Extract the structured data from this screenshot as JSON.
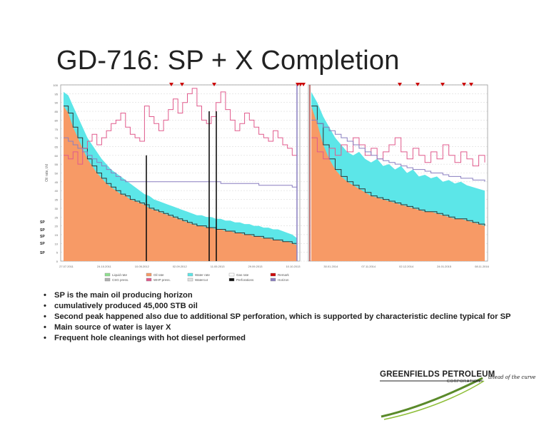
{
  "slide": {
    "title": "GD-716: SP + X Completion",
    "bullets": [
      "SP is the main oil producing horizon",
      "cumulatively produced 45,000 STB oil",
      "Second peak happened also due to additional SP perforation, which is supported by characteristic decline typical for SP",
      "Main source of water is layer X",
      "Frequent hole cleanings with hot diesel performed"
    ]
  },
  "logo": {
    "name": "GREENFIELDS PETROLEUM",
    "sub": "CORPORATION",
    "tagline": "ahead of the curve"
  },
  "colors": {
    "oil": "#f79a66",
    "water": "#5ce6e8",
    "liquid": "#8fe08f",
    "whp": "#e05a8c",
    "gor": "#8a7fc0",
    "remark": "#cc0000",
    "perforation": "#111111"
  },
  "chart_data": {
    "type": "area",
    "left_axis_labels": [
      "SP",
      "SP",
      "SP",
      "SP",
      "SP"
    ],
    "legend": [
      "Liquid rate",
      "Oil rate",
      "Water rate",
      "Gas rate",
      "Remark",
      "CSG press.",
      "WHP press.",
      "Watercut",
      "Perforations",
      "Horizon"
    ],
    "series": [
      {
        "name": "Oil rate",
        "color": "#f79a66",
        "values": [
          88,
          84,
          76,
          70,
          64,
          58,
          54,
          50,
          47,
          44,
          42,
          40,
          38,
          37,
          35,
          34,
          33,
          32,
          30,
          29,
          28,
          27,
          26,
          25,
          24,
          23,
          22,
          21,
          20,
          20,
          19,
          19,
          18,
          18,
          17,
          17,
          16,
          16,
          15,
          15,
          14,
          14,
          13,
          13,
          12,
          12,
          11,
          11,
          10,
          9,
          88,
          78,
          66,
          58,
          52,
          48,
          45,
          43,
          41,
          39,
          37,
          36,
          35,
          34,
          33,
          32,
          31,
          30,
          29,
          28,
          28,
          27,
          26,
          25,
          24,
          24,
          23,
          22,
          21,
          20
        ]
      },
      {
        "name": "Water rate",
        "color": "#5ce6e8",
        "values": [
          96,
          94,
          88,
          82,
          76,
          70,
          66,
          62,
          58,
          55,
          52,
          50,
          48,
          46,
          44,
          42,
          40,
          38,
          37,
          35,
          34,
          33,
          32,
          31,
          30,
          29,
          28,
          27,
          26,
          26,
          25,
          25,
          24,
          24,
          23,
          23,
          22,
          22,
          21,
          21,
          20,
          20,
          19,
          19,
          18,
          18,
          17,
          16,
          15,
          13,
          96,
          90,
          82,
          76,
          70,
          66,
          62,
          60,
          62,
          58,
          56,
          58,
          54,
          55,
          52,
          54,
          50,
          52,
          48,
          49,
          47,
          48,
          45,
          46,
          44,
          45,
          43,
          42,
          41,
          40
        ]
      },
      {
        "name": "WHP press.",
        "color": "#e05a8c",
        "values": [
          60,
          58,
          62,
          55,
          64,
          68,
          72,
          66,
          70,
          74,
          78,
          80,
          84,
          76,
          72,
          70,
          68,
          88,
          82,
          78,
          74,
          80,
          86,
          92,
          84,
          90,
          95,
          98,
          88,
          80,
          78,
          82,
          90,
          96,
          86,
          80,
          74,
          78,
          84,
          80,
          76,
          72,
          70,
          68,
          74,
          70,
          66,
          64,
          60,
          58,
          70,
          62,
          58,
          64,
          60,
          66,
          62,
          70,
          66,
          60,
          64,
          58,
          62,
          66,
          70,
          62,
          58,
          64,
          60,
          56,
          62,
          58,
          66,
          60,
          56,
          62,
          58,
          54,
          60,
          56
        ]
      },
      {
        "name": "Gas rate",
        "color": "#8a7fc0",
        "values": [
          70,
          68,
          66,
          64,
          62,
          60,
          58,
          56,
          54,
          52,
          50,
          48,
          46,
          45,
          45,
          45,
          45,
          45,
          45,
          45,
          45,
          45,
          45,
          45,
          45,
          45,
          45,
          45,
          45,
          45,
          45,
          45,
          45,
          44,
          44,
          44,
          44,
          44,
          44,
          44,
          44,
          43,
          43,
          43,
          43,
          43,
          43,
          43,
          42,
          42,
          80,
          78,
          76,
          74,
          72,
          70,
          68,
          66,
          64,
          62,
          60,
          58,
          57,
          56,
          55,
          54,
          53,
          52,
          52,
          51,
          50,
          50,
          49,
          48,
          48,
          47,
          47,
          46,
          46,
          45
        ]
      }
    ],
    "x_ticks": [
      "27.07.2011",
      "24.10.2011",
      "10.05.2012",
      "02.09.2012",
      "11.05.2013",
      "29.09.2013",
      "10.10.2013",
      "30.01.2014",
      "07.11.2014",
      "02.12.2014",
      "24.01.2015",
      "08.11.2016"
    ],
    "y_ticks": [
      "0",
      "5",
      "10",
      "15",
      "20",
      "25",
      "30",
      "35",
      "40",
      "45",
      "50",
      "55",
      "60",
      "65",
      "70",
      "75",
      "80",
      "85",
      "90",
      "95",
      "100"
    ],
    "ylabel": "Oil rate, t/d"
  }
}
